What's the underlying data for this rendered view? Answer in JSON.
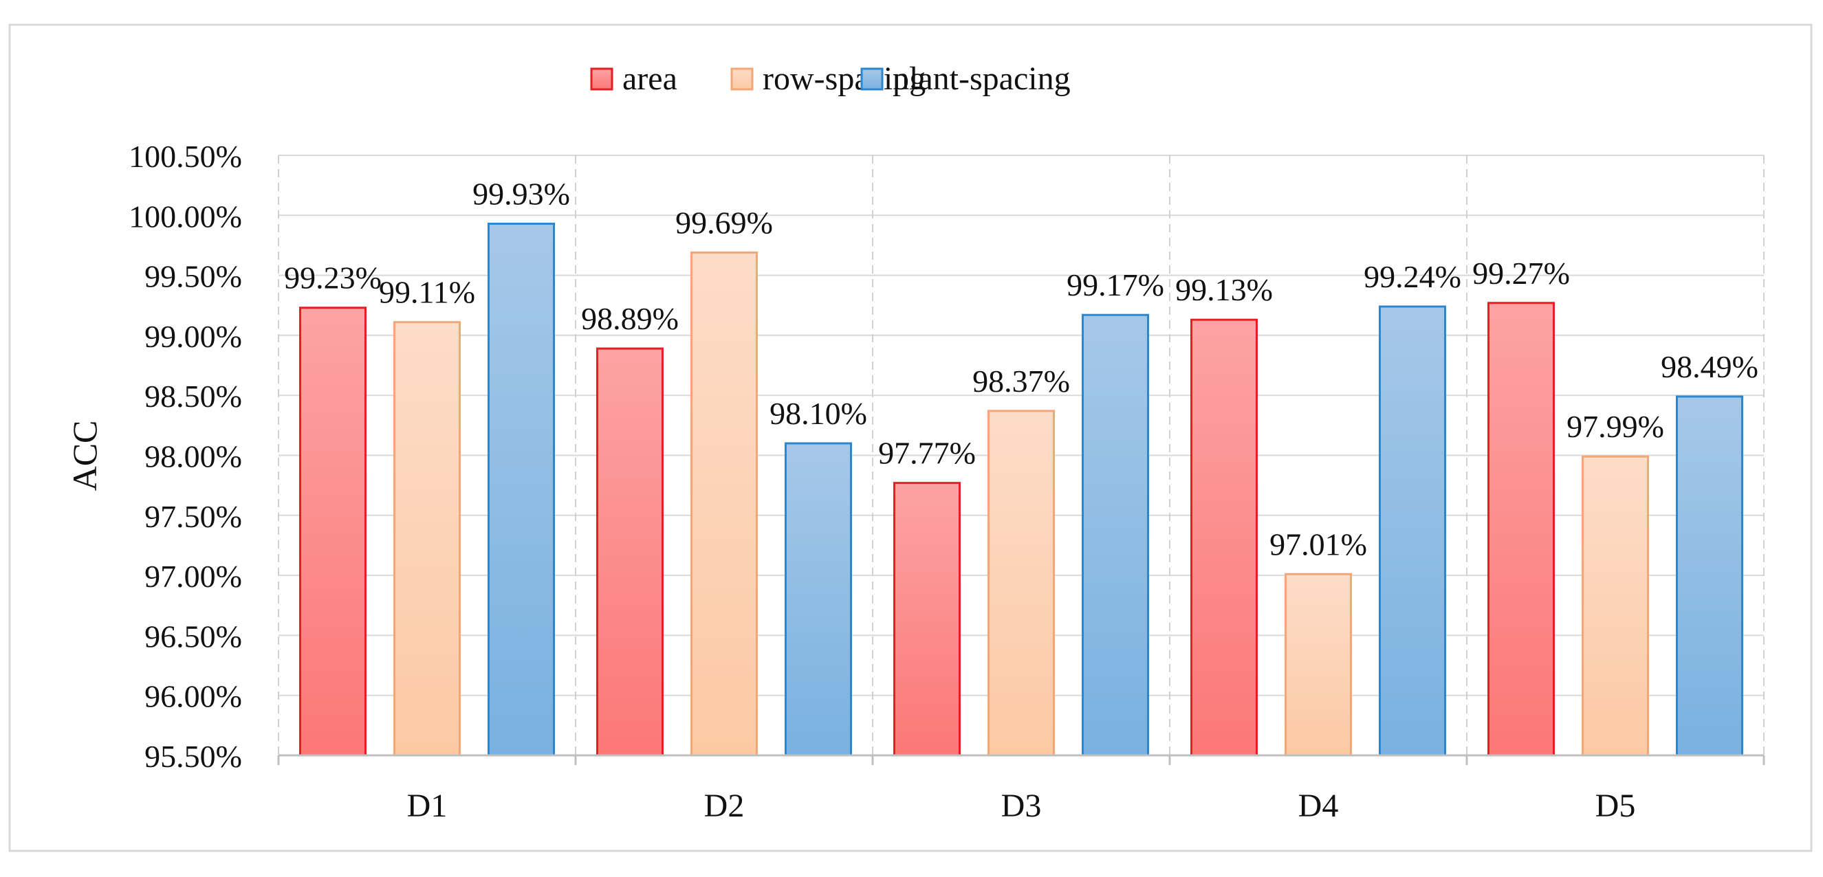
{
  "chart_data": {
    "type": "bar",
    "title": "",
    "xlabel": "",
    "ylabel": "ACC",
    "categories": [
      "D1",
      "D2",
      "D3",
      "D4",
      "D5"
    ],
    "series": [
      {
        "name": "area",
        "values": [
          99.23,
          98.89,
          97.77,
          99.13,
          99.27
        ],
        "labels": [
          "99.23%",
          "98.89%",
          "97.77%",
          "99.13%",
          "99.27%"
        ],
        "fill_top": "#fca3a3",
        "fill_bottom": "#fc7777",
        "stroke": "#e51f23"
      },
      {
        "name": "row-spacing",
        "values": [
          99.11,
          99.69,
          98.37,
          97.01,
          97.99
        ],
        "labels": [
          "99.11%",
          "99.69%",
          "98.37%",
          "97.01%",
          "97.99%"
        ],
        "fill_top": "#fddcc8",
        "fill_bottom": "#fcc9a4",
        "stroke": "#f5a677"
      },
      {
        "name": "plant-spacing",
        "values": [
          99.93,
          98.1,
          99.17,
          99.24,
          98.49
        ],
        "labels": [
          "99.93%",
          "98.10%",
          "99.17%",
          "99.24%",
          "98.49%"
        ],
        "fill_top": "#a6c8e8",
        "fill_bottom": "#79b1e0",
        "stroke": "#2e86cd"
      }
    ],
    "ylim": [
      95.5,
      100.5
    ],
    "yticks": [
      95.5,
      96.0,
      96.5,
      97.0,
      97.5,
      98.0,
      98.5,
      99.0,
      99.5,
      100.0,
      100.5
    ],
    "ytick_labels": [
      "95.50%",
      "96.00%",
      "96.50%",
      "97.00%",
      "97.50%",
      "98.00%",
      "98.50%",
      "99.00%",
      "99.50%",
      "100.00%",
      "100.50%"
    ],
    "grid": true,
    "legend_position": "top-center"
  }
}
